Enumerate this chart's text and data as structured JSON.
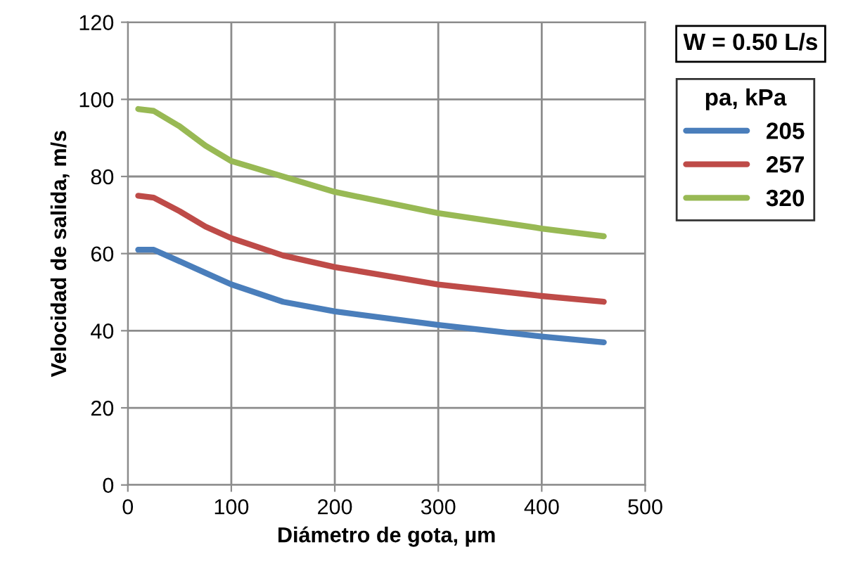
{
  "chart_data": {
    "type": "line",
    "xlabel": "Diámetro de gota, µm",
    "ylabel": "Velocidad de salida, m/s",
    "legend_title": "pa, kPa",
    "annotations": [
      "W = 0.50 L/s"
    ],
    "x": [
      10,
      25,
      50,
      75,
      100,
      150,
      200,
      300,
      400,
      460
    ],
    "series": [
      {
        "name": "205",
        "color": "#4a7ebb",
        "values": [
          61,
          61,
          58,
          55,
          52,
          47.5,
          45,
          41.5,
          38.5,
          37
        ]
      },
      {
        "name": "257",
        "color": "#be4b48",
        "values": [
          75,
          74.5,
          71,
          67,
          64,
          59.5,
          56.5,
          52,
          49,
          47.5
        ]
      },
      {
        "name": "320",
        "color": "#98b954",
        "values": [
          97.5,
          97,
          93,
          88,
          84,
          80,
          76,
          70.5,
          66.5,
          64.5
        ]
      }
    ],
    "xlim": [
      0,
      500
    ],
    "xticks": [
      0,
      100,
      200,
      300,
      400,
      500
    ],
    "ylim": [
      0,
      120
    ],
    "yticks": [
      0,
      20,
      40,
      60,
      80,
      100,
      120
    ],
    "grid": true,
    "legend": "right",
    "marker": "none",
    "line_style": "solid"
  }
}
